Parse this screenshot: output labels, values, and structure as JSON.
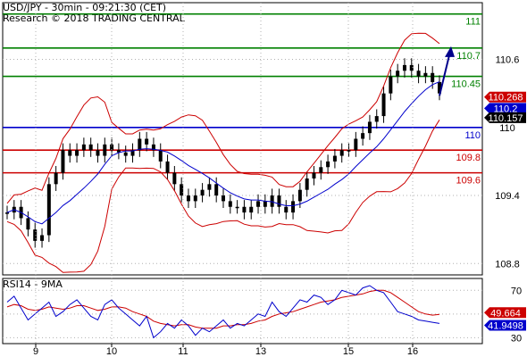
{
  "header": {
    "line1": "USD/JPY - 30min - 09:21:30 (CET)",
    "line2": "Research © 2018 TRADING CENTRAL"
  },
  "colors": {
    "green": "#008000",
    "red": "#cc0000",
    "blue": "#0000cc",
    "black": "#000000",
    "bands": "#cc0000",
    "ma": "#0000cc"
  },
  "chart_data": [
    {
      "type": "line",
      "title": "",
      "x_ticks": [
        "9",
        "10",
        "11",
        "13",
        "15",
        "16"
      ],
      "y_ticks": [
        "110.6",
        "110",
        "109.4",
        "108.8"
      ],
      "ylim": [
        108.7,
        111.1
      ],
      "grid": true,
      "levels": [
        {
          "value": 111.0,
          "label": "111",
          "color": "#008000"
        },
        {
          "value": 110.7,
          "label": "110.7",
          "color": "#008000"
        },
        {
          "value": 110.45,
          "label": "110.45",
          "color": "#008000"
        },
        {
          "value": 110.0,
          "label": "110",
          "color": "#0000cc"
        },
        {
          "value": 109.8,
          "label": "109.8",
          "color": "#cc0000"
        },
        {
          "value": 109.6,
          "label": "109.6",
          "color": "#cc0000"
        }
      ],
      "price_tags": [
        {
          "value": 110.268,
          "label": "110.268",
          "bg": "#cc0000",
          "fg": "#ffffff"
        },
        {
          "value": 110.2,
          "label": "110.2",
          "bg": "#0000cc",
          "fg": "#ffffff"
        },
        {
          "value": 110.157,
          "label": "110.157",
          "bg": "#000000",
          "fg": "#ffffff"
        }
      ],
      "series": [
        {
          "values": [
            109.25,
            109.3,
            109.2,
            109.1,
            109.0,
            109.05,
            109.5,
            109.6,
            109.8,
            109.75,
            109.8,
            109.85,
            109.8,
            109.75,
            109.85,
            109.8,
            109.78,
            109.75,
            109.8,
            109.9,
            109.85,
            109.8,
            109.7,
            109.6,
            109.5,
            109.4,
            109.35,
            109.4,
            109.45,
            109.5,
            109.4,
            109.35,
            109.3,
            109.3,
            109.25,
            109.3,
            109.35,
            109.3,
            109.4,
            109.3,
            109.25,
            109.35,
            109.45,
            109.55,
            109.6,
            109.65,
            109.7,
            109.75,
            109.8,
            109.8,
            109.9,
            109.95,
            110.05,
            110.1,
            110.3,
            110.45,
            110.5,
            110.55,
            110.5,
            110.45,
            110.48,
            110.4,
            110.3
          ]
        }
      ],
      "arrow": {
        "from": 110.28,
        "to": 110.7
      }
    },
    {
      "type": "line",
      "title": "RSI14 - 9MA",
      "y_ticks": [
        "70",
        "50",
        "30"
      ],
      "ylim": [
        25,
        80
      ],
      "price_tags": [
        {
          "value": 49.664,
          "label": "49.664",
          "bg": "#cc0000",
          "fg": "#ffffff"
        },
        {
          "value": 41.9498,
          "label": "41.9498",
          "bg": "#0000cc",
          "fg": "#ffffff"
        }
      ],
      "series": [
        {
          "values": [
            60,
            65,
            55,
            45,
            50,
            55,
            60,
            48,
            52,
            58,
            62,
            55,
            48,
            45,
            58,
            62,
            55,
            50,
            45,
            40,
            48,
            30,
            35,
            42,
            38,
            45,
            40,
            32,
            38,
            35,
            40,
            45,
            38,
            42,
            40,
            45,
            50,
            48,
            60,
            52,
            48,
            55,
            62,
            60,
            66,
            64,
            58,
            62,
            70,
            68,
            66,
            72,
            74,
            70,
            68,
            60,
            52,
            50,
            48,
            45,
            44,
            43,
            42
          ]
        },
        {
          "values": [
            56,
            58,
            57,
            54,
            53,
            54,
            56,
            55,
            54,
            55,
            57,
            57,
            55,
            53,
            54,
            56,
            56,
            55,
            52,
            50,
            48,
            44,
            42,
            41,
            40,
            41,
            41,
            39,
            38,
            38,
            38,
            40,
            40,
            41,
            41,
            42,
            44,
            45,
            48,
            50,
            51,
            52,
            54,
            56,
            58,
            60,
            61,
            62,
            64,
            65,
            66,
            67,
            69,
            70,
            70,
            68,
            64,
            60,
            56,
            52,
            50,
            49,
            49.7
          ]
        }
      ]
    }
  ]
}
